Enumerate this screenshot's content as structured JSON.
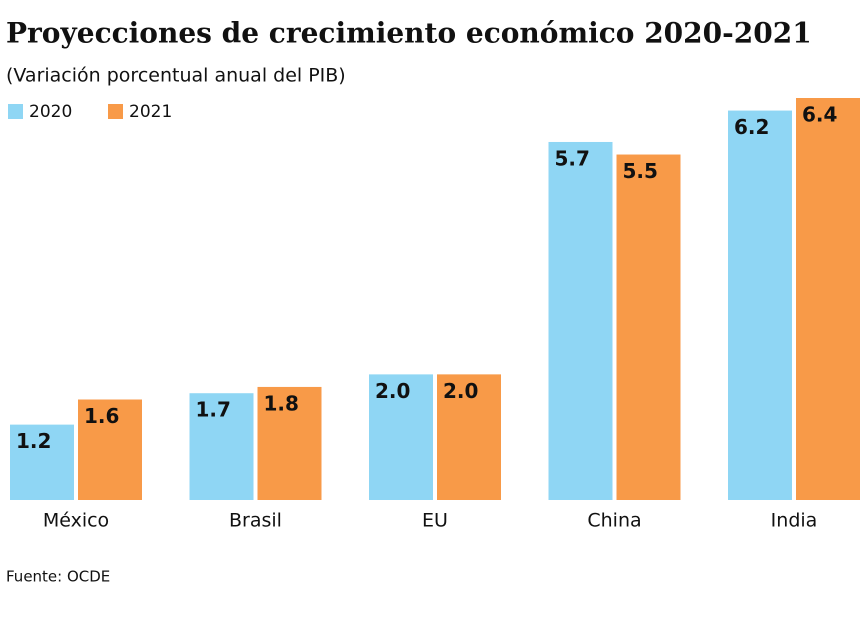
{
  "chart_data": {
    "type": "bar",
    "title": "Proyecciones de crecimiento económico 2020-2021",
    "subtitle": "(Variación porcentual anual del PIB)",
    "source": "Fuente: OCDE",
    "categories": [
      "México",
      "Brasil",
      "EU",
      "China",
      "India"
    ],
    "series": [
      {
        "name": "2020",
        "color": "#8fd6f4",
        "values": [
          1.2,
          1.7,
          2.0,
          5.7,
          6.2
        ],
        "value_labels": [
          "1.2",
          "1.7",
          "2.0",
          "5.7",
          "6.2"
        ]
      },
      {
        "name": "2021",
        "color": "#f89a48",
        "values": [
          1.6,
          1.8,
          2.0,
          5.5,
          6.4
        ],
        "value_labels": [
          "1.6",
          "1.8",
          "2.0",
          "5.5",
          "6.4"
        ]
      }
    ]
  }
}
